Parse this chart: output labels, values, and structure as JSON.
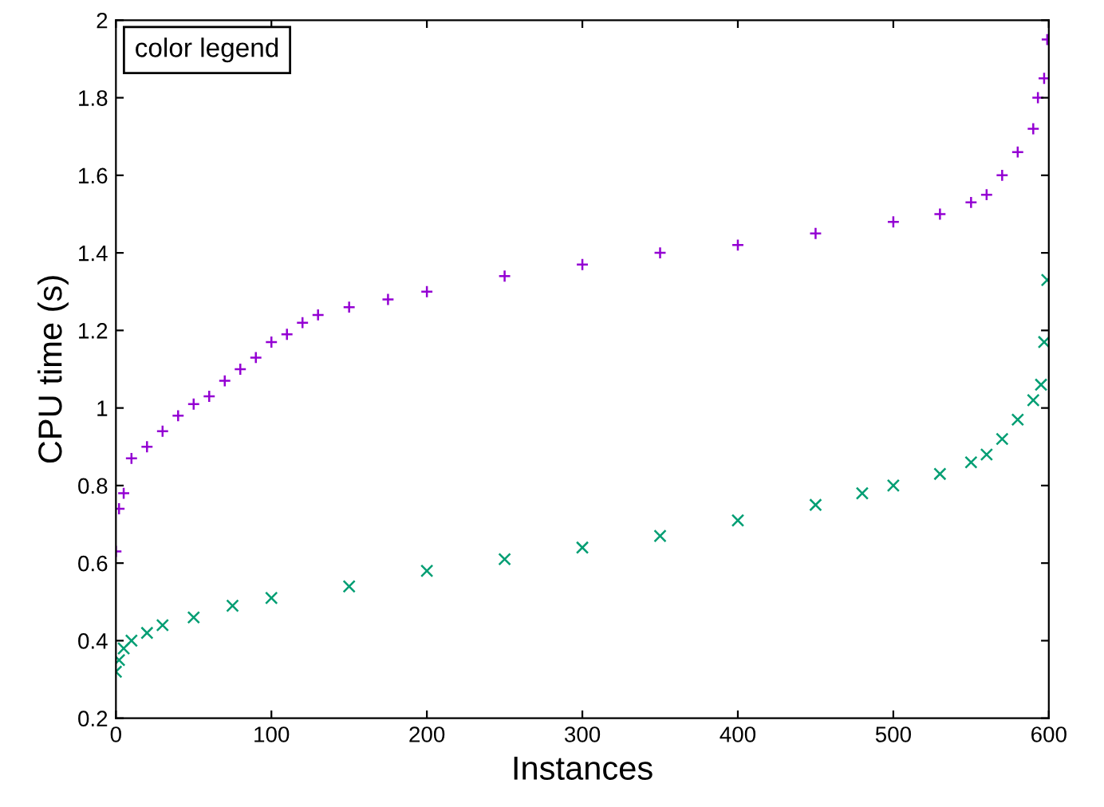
{
  "chart_data": {
    "type": "scatter",
    "xlabel": "Instances",
    "ylabel": "CPU time (s)",
    "legend_title": "color legend",
    "grid": false,
    "xlim": [
      0,
      600
    ],
    "xticks": [
      0,
      100,
      200,
      300,
      400,
      500,
      600
    ],
    "ylim": [
      0.2,
      2
    ],
    "yticks": [
      0.2,
      0.4,
      0.6,
      0.8,
      1,
      1.2,
      1.4,
      1.6,
      1.8,
      2
    ],
    "series": [
      {
        "color": "#9400d3",
        "marker": "cross",
        "x": [
          0,
          2,
          5,
          10,
          20,
          30,
          40,
          50,
          60,
          70,
          80,
          90,
          100,
          110,
          120,
          130,
          150,
          175,
          200,
          250,
          300,
          350,
          400,
          450,
          500,
          530,
          550,
          560,
          570,
          580,
          590,
          593,
          597,
          599
        ],
        "values": [
          0.63,
          0.74,
          0.78,
          0.87,
          0.9,
          0.94,
          0.98,
          1.01,
          1.03,
          1.07,
          1.1,
          1.13,
          1.17,
          1.19,
          1.22,
          1.24,
          1.26,
          1.28,
          1.3,
          1.34,
          1.37,
          1.4,
          1.42,
          1.45,
          1.48,
          1.5,
          1.53,
          1.55,
          1.6,
          1.66,
          1.72,
          1.8,
          1.85,
          1.95
        ]
      },
      {
        "color": "#009e73",
        "marker": "x",
        "x": [
          0,
          2,
          5,
          10,
          20,
          30,
          50,
          75,
          100,
          150,
          200,
          250,
          300,
          350,
          400,
          450,
          480,
          500,
          530,
          550,
          560,
          570,
          580,
          590,
          595,
          597,
          599
        ],
        "values": [
          0.32,
          0.35,
          0.38,
          0.4,
          0.42,
          0.44,
          0.46,
          0.49,
          0.51,
          0.54,
          0.58,
          0.61,
          0.64,
          0.67,
          0.71,
          0.75,
          0.78,
          0.8,
          0.83,
          0.86,
          0.88,
          0.92,
          0.97,
          1.02,
          1.06,
          1.17,
          1.33
        ]
      }
    ]
  }
}
